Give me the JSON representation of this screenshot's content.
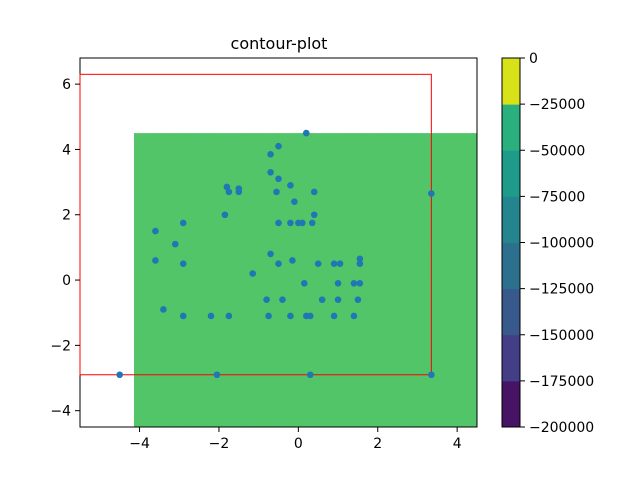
{
  "chart_data": {
    "type": "contour",
    "title": "contour-plot",
    "xlabel": "",
    "ylabel": "",
    "xlim": [
      -5.5,
      4.5
    ],
    "ylim": [
      -4.5,
      6.8
    ],
    "x_ticks": [
      -4,
      -2,
      0,
      2,
      4
    ],
    "y_ticks": [
      -4,
      -2,
      0,
      2,
      4,
      6
    ],
    "tick_labels": {
      "x": [
        "−4",
        "−2",
        "0",
        "2",
        "4"
      ],
      "y": [
        "−4",
        "−2",
        "0",
        "2",
        "4",
        "6"
      ]
    },
    "contour_domain": {
      "x": [
        -4.5,
        4.5
      ],
      "y": [
        -4.5,
        4.5
      ]
    },
    "colorbar": {
      "levels": [
        -200000,
        -175000,
        -150000,
        -125000,
        -100000,
        -75000,
        -50000,
        -25000,
        0
      ],
      "tick_labels": [
        "−200000",
        "−175000",
        "−150000",
        "−125000",
        "−100000",
        "−75000",
        "−50000",
        "−25000",
        "0"
      ],
      "colors": [
        "#471365",
        "#433e85",
        "#38598c",
        "#2d708e",
        "#25858e",
        "#1e9b8a",
        "#2ab07f",
        "#52c569",
        "#86d549",
        "#d8e219"
      ]
    },
    "rectangle": {
      "x0": -5.5,
      "y0": -2.9,
      "x1": 3.35,
      "y1": 6.3,
      "color": "#ff0000"
    },
    "points_color": "#1f77b4",
    "points": [
      [
        0.2,
        4.5
      ],
      [
        -0.5,
        4.1
      ],
      [
        -0.7,
        3.85
      ],
      [
        -0.7,
        3.3
      ],
      [
        -0.5,
        3.1
      ],
      [
        -0.2,
        2.9
      ],
      [
        -0.55,
        2.7
      ],
      [
        0.4,
        2.7
      ],
      [
        -1.8,
        2.85
      ],
      [
        -1.75,
        2.7
      ],
      [
        -1.5,
        2.7
      ],
      [
        -1.5,
        2.8
      ],
      [
        -0.1,
        2.4
      ],
      [
        -1.85,
        2.0
      ],
      [
        0.4,
        2.0
      ],
      [
        -2.9,
        1.75
      ],
      [
        -0.5,
        1.75
      ],
      [
        -0.2,
        1.75
      ],
      [
        0.0,
        1.75
      ],
      [
        0.1,
        1.75
      ],
      [
        0.35,
        1.75
      ],
      [
        -3.6,
        1.5
      ],
      [
        -3.1,
        1.1
      ],
      [
        -0.7,
        0.8
      ],
      [
        -3.6,
        0.6
      ],
      [
        -2.9,
        0.5
      ],
      [
        -0.5,
        0.5
      ],
      [
        -0.15,
        0.6
      ],
      [
        0.5,
        0.5
      ],
      [
        0.9,
        0.5
      ],
      [
        1.05,
        0.5
      ],
      [
        1.55,
        0.5
      ],
      [
        1.55,
        0.65
      ],
      [
        -1.15,
        0.2
      ],
      [
        0.15,
        -0.1
      ],
      [
        1.0,
        -0.1
      ],
      [
        1.4,
        -0.1
      ],
      [
        1.55,
        -0.1
      ],
      [
        -0.8,
        -0.6
      ],
      [
        -0.4,
        -0.6
      ],
      [
        0.6,
        -0.6
      ],
      [
        1.0,
        -0.6
      ],
      [
        1.5,
        -0.6
      ],
      [
        -3.4,
        -0.9
      ],
      [
        -2.9,
        -1.1
      ],
      [
        -2.2,
        -1.1
      ],
      [
        -1.75,
        -1.1
      ],
      [
        -0.75,
        -1.1
      ],
      [
        -0.2,
        -1.1
      ],
      [
        0.2,
        -1.1
      ],
      [
        0.3,
        -1.1
      ],
      [
        0.9,
        -1.1
      ],
      [
        1.4,
        -1.1
      ],
      [
        -4.5,
        -2.9
      ],
      [
        -2.05,
        -2.9
      ],
      [
        0.3,
        -2.9
      ],
      [
        3.35,
        -2.9
      ],
      [
        3.35,
        2.65
      ]
    ]
  }
}
